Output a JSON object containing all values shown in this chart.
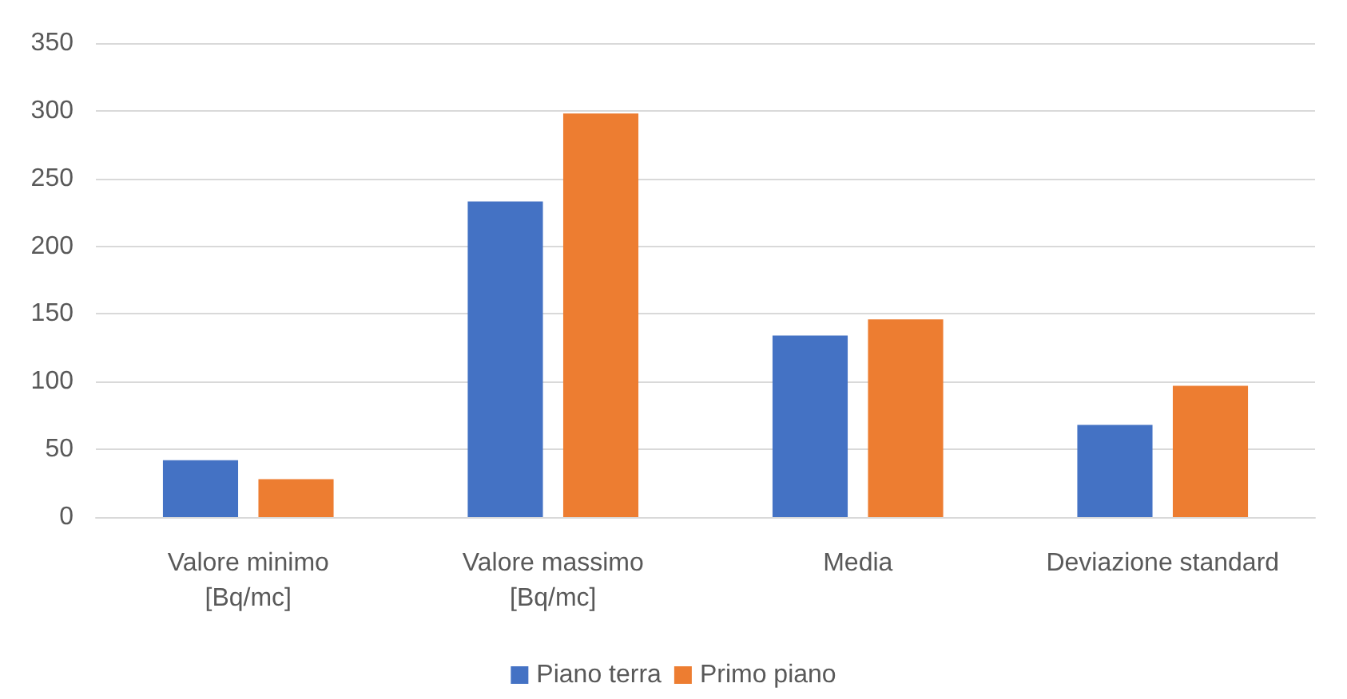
{
  "chart_data": {
    "type": "bar",
    "categories": [
      "Valore minimo\n[Bq/mc]",
      "Valore massimo\n[Bq/mc]",
      "Media",
      "Deviazione standard"
    ],
    "series": [
      {
        "name": "Piano terra",
        "color": "#4472c4",
        "values": [
          42,
          233,
          134,
          68
        ]
      },
      {
        "name": "Primo piano",
        "color": "#ed7d31",
        "values": [
          28,
          298,
          146,
          97
        ]
      }
    ],
    "ylim": [
      0,
      350
    ],
    "yticks": [
      0,
      50,
      100,
      150,
      200,
      250,
      300,
      350
    ],
    "grid": "y",
    "legend": "bottom"
  }
}
